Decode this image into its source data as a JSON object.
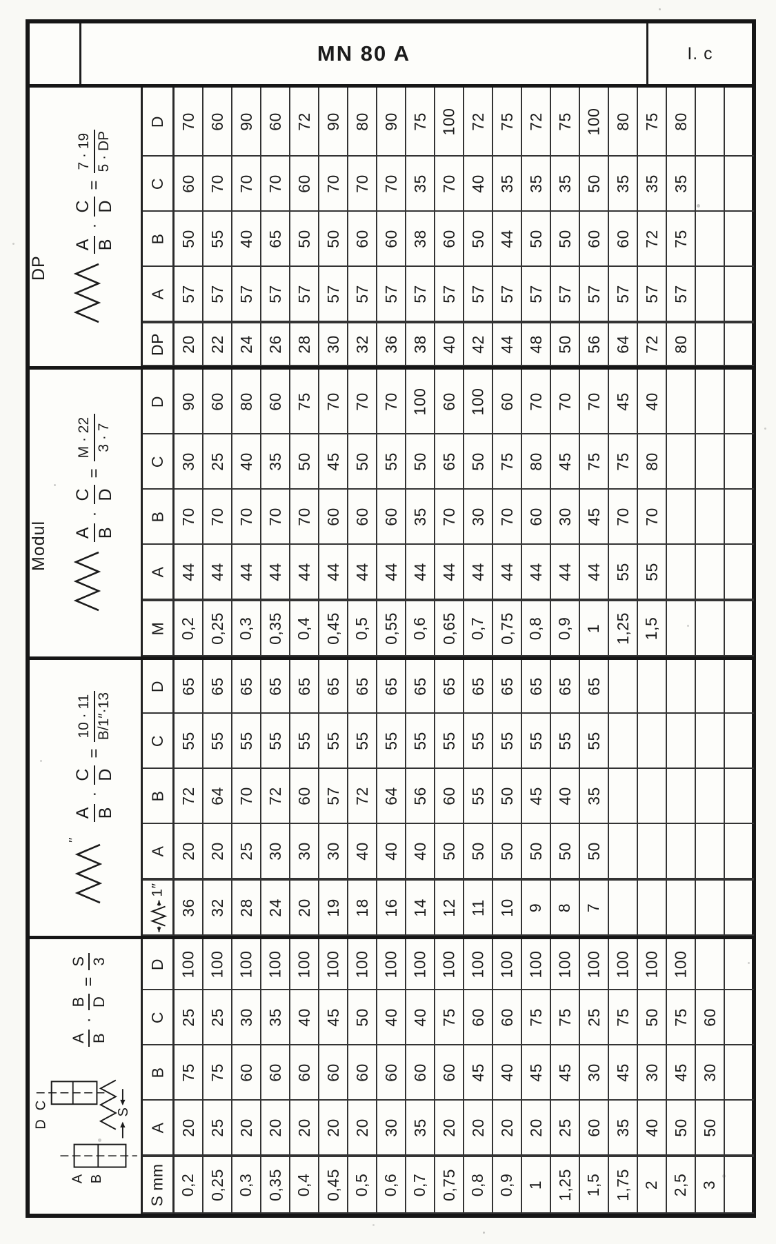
{
  "header": {
    "title": "MN 80 A",
    "code": "I. c"
  },
  "symbols": {
    "times": "·",
    "equals": "="
  },
  "bands_meta": {
    "dp": {
      "label": "DP",
      "n1": "A",
      "d1": "B",
      "n2": "C",
      "d2": "D",
      "rn": "7 · 19",
      "rd": "5 · DP"
    },
    "modul": {
      "label": "Modul",
      "n1": "A",
      "d1": "B",
      "n2": "C",
      "d2": "D",
      "rn": "M · 22",
      "rd": "3 · 7"
    },
    "inch": {
      "label": "",
      "n1": "A",
      "d1": "B",
      "n2": "C",
      "d2": "D",
      "rn": "10 · 11",
      "rd": "B/1″·13",
      "prime": "″"
    },
    "smm": {
      "label": "",
      "n1": "A",
      "d1": "B",
      "n2": "B",
      "d2": "D",
      "rn": "S",
      "rd": "3",
      "lA": "A",
      "lB": "B",
      "lC": "C",
      "lD": "D",
      "dim": "S"
    }
  },
  "bands": [
    {
      "id": "dp",
      "key_label": "DP",
      "rows": [
        {
          "label": "D",
          "values": [
            "70",
            "60",
            "90",
            "60",
            "72",
            "90",
            "80",
            "90",
            "75",
            "100",
            "72",
            "75",
            "72",
            "75",
            "100",
            "80",
            "75",
            "80",
            "",
            ""
          ]
        },
        {
          "label": "C",
          "values": [
            "60",
            "70",
            "70",
            "70",
            "60",
            "70",
            "70",
            "70",
            "35",
            "70",
            "40",
            "35",
            "35",
            "35",
            "50",
            "35",
            "35",
            "35",
            "",
            ""
          ]
        },
        {
          "label": "B",
          "values": [
            "50",
            "55",
            "40",
            "65",
            "50",
            "50",
            "60",
            "60",
            "38",
            "60",
            "50",
            "44",
            "50",
            "50",
            "60",
            "60",
            "72",
            "75",
            "",
            ""
          ]
        },
        {
          "label": "A",
          "values": [
            "57",
            "57",
            "57",
            "57",
            "57",
            "57",
            "57",
            "57",
            "57",
            "57",
            "57",
            "57",
            "57",
            "57",
            "57",
            "57",
            "57",
            "57",
            "",
            ""
          ]
        }
      ],
      "key_values": [
        "20",
        "22",
        "24",
        "26",
        "28",
        "30",
        "32",
        "36",
        "38",
        "40",
        "42",
        "44",
        "48",
        "50",
        "56",
        "64",
        "72",
        "80",
        "",
        ""
      ]
    },
    {
      "id": "modul",
      "key_label": "M",
      "rows": [
        {
          "label": "D",
          "values": [
            "90",
            "60",
            "80",
            "60",
            "75",
            "70",
            "70",
            "70",
            "100",
            "60",
            "100",
            "60",
            "70",
            "70",
            "70",
            "45",
            "40",
            "",
            "",
            ""
          ]
        },
        {
          "label": "C",
          "values": [
            "30",
            "25",
            "40",
            "35",
            "50",
            "45",
            "50",
            "55",
            "50",
            "65",
            "50",
            "75",
            "80",
            "45",
            "75",
            "75",
            "80",
            "",
            "",
            ""
          ]
        },
        {
          "label": "B",
          "values": [
            "70",
            "70",
            "70",
            "70",
            "70",
            "60",
            "60",
            "60",
            "35",
            "70",
            "30",
            "70",
            "60",
            "30",
            "45",
            "70",
            "70",
            "",
            "",
            ""
          ]
        },
        {
          "label": "A",
          "values": [
            "44",
            "44",
            "44",
            "44",
            "44",
            "44",
            "44",
            "44",
            "44",
            "44",
            "44",
            "44",
            "44",
            "44",
            "44",
            "55",
            "55",
            "",
            "",
            ""
          ]
        }
      ],
      "key_values": [
        "0,2",
        "0,25",
        "0,3",
        "0,35",
        "0,4",
        "0,45",
        "0,5",
        "0,55",
        "0,6",
        "0,65",
        "0,7",
        "0,75",
        "0,8",
        "0,9",
        "1",
        "1,25",
        "1,5",
        "",
        "",
        ""
      ]
    },
    {
      "id": "inch",
      "key_label": "1″",
      "rows": [
        {
          "label": "D",
          "values": [
            "65",
            "65",
            "65",
            "65",
            "65",
            "65",
            "65",
            "65",
            "65",
            "65",
            "65",
            "65",
            "65",
            "65",
            "65",
            "",
            "",
            "",
            "",
            ""
          ]
        },
        {
          "label": "C",
          "values": [
            "55",
            "55",
            "55",
            "55",
            "55",
            "55",
            "55",
            "55",
            "55",
            "55",
            "55",
            "55",
            "55",
            "55",
            "55",
            "",
            "",
            "",
            "",
            ""
          ]
        },
        {
          "label": "B",
          "values": [
            "72",
            "64",
            "70",
            "72",
            "60",
            "57",
            "72",
            "64",
            "56",
            "60",
            "55",
            "50",
            "45",
            "40",
            "35",
            "",
            "",
            "",
            "",
            ""
          ]
        },
        {
          "label": "A",
          "values": [
            "20",
            "20",
            "25",
            "30",
            "30",
            "30",
            "40",
            "40",
            "40",
            "50",
            "50",
            "50",
            "50",
            "50",
            "50",
            "",
            "",
            "",
            "",
            ""
          ]
        }
      ],
      "key_values": [
        "36",
        "32",
        "28",
        "24",
        "20",
        "19",
        "18",
        "16",
        "14",
        "12",
        "11",
        "10",
        "9",
        "8",
        "7",
        "",
        "",
        "",
        "",
        ""
      ]
    },
    {
      "id": "smm",
      "key_label": "S mm",
      "rows": [
        {
          "label": "D",
          "values": [
            "100",
            "100",
            "100",
            "100",
            "100",
            "100",
            "100",
            "100",
            "100",
            "100",
            "100",
            "100",
            "100",
            "100",
            "100",
            "100",
            "100",
            "100",
            "",
            ""
          ]
        },
        {
          "label": "C",
          "values": [
            "25",
            "25",
            "30",
            "35",
            "40",
            "45",
            "50",
            "40",
            "40",
            "75",
            "60",
            "60",
            "75",
            "75",
            "25",
            "75",
            "50",
            "75",
            "60",
            ""
          ]
        },
        {
          "label": "B",
          "values": [
            "75",
            "75",
            "60",
            "60",
            "60",
            "60",
            "60",
            "60",
            "60",
            "60",
            "45",
            "40",
            "45",
            "45",
            "30",
            "45",
            "30",
            "45",
            "30",
            ""
          ]
        },
        {
          "label": "A",
          "values": [
            "20",
            "25",
            "20",
            "20",
            "20",
            "20",
            "20",
            "30",
            "35",
            "20",
            "20",
            "20",
            "20",
            "25",
            "60",
            "35",
            "40",
            "50",
            "50",
            ""
          ]
        }
      ],
      "key_values": [
        "0,2",
        "0,25",
        "0,3",
        "0,35",
        "0,4",
        "0,45",
        "0,5",
        "0,6",
        "0,7",
        "0,75",
        "0,8",
        "0,9",
        "1",
        "1,25",
        "1,5",
        "1,75",
        "2",
        "2,5",
        "3",
        ""
      ]
    }
  ]
}
